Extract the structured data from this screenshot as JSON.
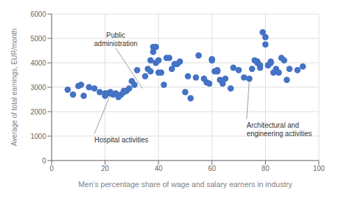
{
  "chart_data": {
    "type": "scatter",
    "x": [
      6,
      8,
      10,
      11,
      12,
      14,
      16,
      18,
      20,
      20,
      21,
      22,
      22,
      23,
      24,
      25,
      26,
      27,
      27,
      28,
      29,
      30,
      31,
      32,
      35,
      36,
      37,
      37,
      38,
      38,
      39,
      39,
      40,
      40,
      41,
      42,
      43,
      44,
      45,
      46,
      47,
      48,
      50,
      51,
      52,
      54,
      55,
      57,
      58,
      59,
      60,
      60,
      61,
      62,
      62,
      63,
      64,
      65,
      67,
      68,
      70,
      72,
      74,
      75,
      76,
      77,
      77,
      78,
      78,
      79,
      80,
      80,
      81,
      81,
      82,
      82,
      83,
      84,
      85,
      86,
      87,
      88,
      89,
      92,
      94
    ],
    "values": [
      2900,
      2700,
      3050,
      3100,
      2650,
      3000,
      2950,
      2800,
      2750,
      2650,
      2750,
      2800,
      2750,
      2700,
      2750,
      2600,
      2700,
      2850,
      2800,
      2850,
      2950,
      3250,
      3100,
      3700,
      3450,
      3750,
      3650,
      4100,
      4450,
      4650,
      4650,
      4000,
      3600,
      4100,
      3600,
      3100,
      4200,
      4200,
      3750,
      3950,
      3950,
      4050,
      2800,
      3450,
      2550,
      3400,
      4300,
      3350,
      3200,
      3150,
      4100,
      4150,
      3650,
      3650,
      3700,
      3300,
      3150,
      3350,
      2950,
      3800,
      3700,
      3400,
      3350,
      3750,
      4100,
      4000,
      4050,
      3900,
      3800,
      5250,
      5050,
      4750,
      3900,
      3900,
      4000,
      4050,
      3600,
      3750,
      3600,
      4200,
      4100,
      3300,
      3750,
      3700,
      3850
    ],
    "color": "#4472C4",
    "xlabel": "Men’s percentage share of wage and salary earners in industry",
    "ylabel": "Average of total earnings, EUR/month",
    "xlim": [
      0,
      100
    ],
    "ylim": [
      0,
      6000
    ],
    "xticks": [
      0,
      20,
      40,
      60,
      80,
      100
    ],
    "yticks": [
      0,
      1000,
      2000,
      3000,
      4000,
      5000,
      6000
    ],
    "grid": true,
    "annotations": [
      {
        "text": "Public\nadministration",
        "xy": [
          34,
          2950
        ],
        "xytext": [
          24,
          4600
        ]
      },
      {
        "text": "Hospital activities",
        "xy": [
          22,
          2700
        ],
        "xytext": [
          16,
          1100
        ]
      },
      {
        "text": "Architectural and\nengineering activities",
        "xy": [
          74,
          3350
        ],
        "xytext": [
          73,
          1700
        ]
      }
    ]
  }
}
